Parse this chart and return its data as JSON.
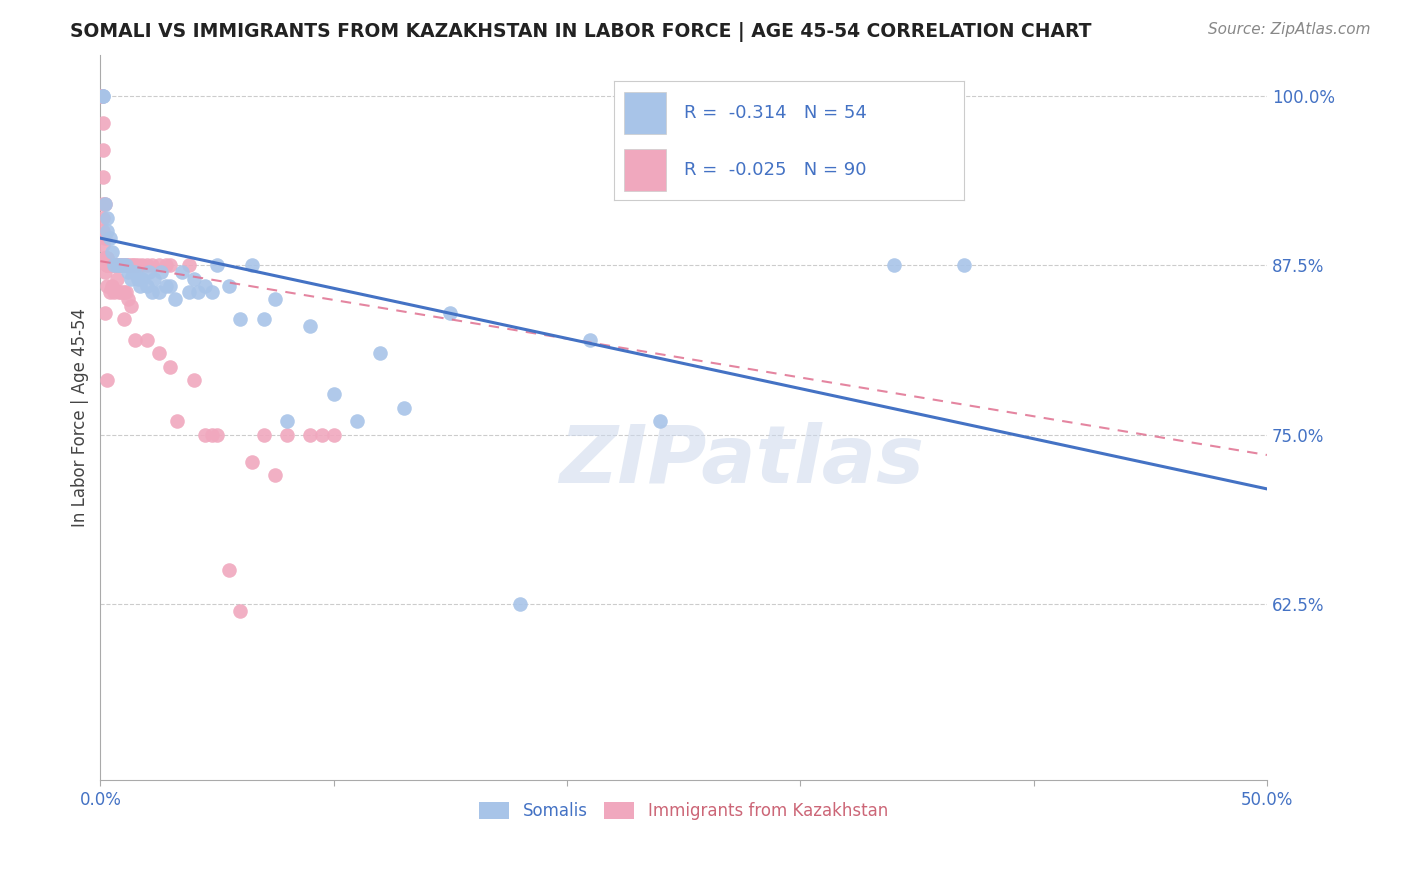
{
  "title": "SOMALI VS IMMIGRANTS FROM KAZAKHSTAN IN LABOR FORCE | AGE 45-54 CORRELATION CHART",
  "source": "Source: ZipAtlas.com",
  "ylabel": "In Labor Force | Age 45-54",
  "xlim": [
    0.0,
    0.5
  ],
  "ylim": [
    0.495,
    1.03
  ],
  "xtick_positions": [
    0.0,
    0.1,
    0.2,
    0.3,
    0.4,
    0.5
  ],
  "xticklabels": [
    "0.0%",
    "",
    "",
    "",
    "",
    "50.0%"
  ],
  "yticks_right": [
    0.625,
    0.75,
    0.875,
    1.0
  ],
  "ytick_right_labels": [
    "62.5%",
    "75.0%",
    "87.5%",
    "100.0%"
  ],
  "blue_R": -0.314,
  "blue_N": 54,
  "pink_R": -0.025,
  "pink_N": 90,
  "blue_color": "#a8c4e8",
  "pink_color": "#f0a8be",
  "blue_line_color": "#4472c4",
  "pink_line_color": "#e07090",
  "legend_blue_label": "Somalis",
  "legend_pink_label": "Immigrants from Kazakhstan",
  "watermark": "ZIPatlas",
  "blue_line_x0": 0.0,
  "blue_line_y0": 0.895,
  "blue_line_x1": 0.5,
  "blue_line_y1": 0.71,
  "pink_line_x0": 0.0,
  "pink_line_y0": 0.878,
  "pink_line_x1": 0.5,
  "pink_line_y1": 0.735,
  "blue_x": [
    0.001,
    0.001,
    0.002,
    0.003,
    0.003,
    0.004,
    0.005,
    0.006,
    0.007,
    0.008,
    0.009,
    0.01,
    0.011,
    0.012,
    0.013,
    0.014,
    0.015,
    0.016,
    0.017,
    0.018,
    0.02,
    0.021,
    0.022,
    0.023,
    0.025,
    0.026,
    0.028,
    0.03,
    0.032,
    0.035,
    0.038,
    0.04,
    0.042,
    0.045,
    0.048,
    0.05,
    0.055,
    0.06,
    0.065,
    0.07,
    0.075,
    0.08,
    0.09,
    0.1,
    0.11,
    0.12,
    0.13,
    0.15,
    0.18,
    0.21,
    0.24,
    0.31,
    0.34,
    0.37
  ],
  "blue_y": [
    1.0,
    1.0,
    0.92,
    0.91,
    0.9,
    0.895,
    0.885,
    0.875,
    0.875,
    0.875,
    0.875,
    0.875,
    0.875,
    0.87,
    0.865,
    0.87,
    0.87,
    0.865,
    0.86,
    0.865,
    0.86,
    0.87,
    0.855,
    0.865,
    0.855,
    0.87,
    0.86,
    0.86,
    0.85,
    0.87,
    0.855,
    0.865,
    0.855,
    0.86,
    0.855,
    0.875,
    0.86,
    0.835,
    0.875,
    0.835,
    0.85,
    0.76,
    0.83,
    0.78,
    0.76,
    0.81,
    0.77,
    0.84,
    0.625,
    0.82,
    0.76,
    1.0,
    0.875,
    0.875
  ],
  "pink_x": [
    0.0005,
    0.0005,
    0.0005,
    0.001,
    0.001,
    0.001,
    0.001,
    0.001,
    0.001,
    0.001,
    0.002,
    0.002,
    0.002,
    0.002,
    0.002,
    0.003,
    0.003,
    0.003,
    0.003,
    0.003,
    0.003,
    0.004,
    0.004,
    0.004,
    0.004,
    0.004,
    0.005,
    0.005,
    0.005,
    0.005,
    0.006,
    0.006,
    0.006,
    0.007,
    0.007,
    0.007,
    0.008,
    0.008,
    0.008,
    0.009,
    0.009,
    0.01,
    0.01,
    0.011,
    0.011,
    0.012,
    0.013,
    0.014,
    0.015,
    0.016,
    0.018,
    0.02,
    0.022,
    0.025,
    0.028,
    0.03,
    0.033,
    0.038,
    0.04,
    0.045,
    0.048,
    0.05,
    0.055,
    0.06,
    0.065,
    0.07,
    0.075,
    0.08,
    0.09,
    0.095,
    0.1,
    0.01,
    0.015,
    0.02,
    0.025,
    0.03,
    0.01,
    0.008,
    0.012,
    0.005,
    0.003,
    0.004,
    0.006,
    0.002,
    0.007,
    0.009,
    0.011,
    0.013,
    0.003,
    0.002
  ],
  "pink_y": [
    1.0,
    1.0,
    1.0,
    0.98,
    0.96,
    0.94,
    0.92,
    0.91,
    0.9,
    0.89,
    0.92,
    0.895,
    0.88,
    0.88,
    0.88,
    0.88,
    0.875,
    0.88,
    0.875,
    0.875,
    0.875,
    0.875,
    0.875,
    0.875,
    0.875,
    0.875,
    0.875,
    0.875,
    0.875,
    0.875,
    0.875,
    0.875,
    0.875,
    0.875,
    0.875,
    0.875,
    0.875,
    0.875,
    0.875,
    0.875,
    0.875,
    0.875,
    0.875,
    0.875,
    0.875,
    0.875,
    0.875,
    0.875,
    0.875,
    0.875,
    0.875,
    0.875,
    0.875,
    0.875,
    0.875,
    0.875,
    0.76,
    0.875,
    0.79,
    0.75,
    0.75,
    0.75,
    0.65,
    0.62,
    0.73,
    0.75,
    0.72,
    0.75,
    0.75,
    0.75,
    0.75,
    0.835,
    0.82,
    0.82,
    0.81,
    0.8,
    0.855,
    0.855,
    0.85,
    0.86,
    0.86,
    0.855,
    0.855,
    0.87,
    0.865,
    0.855,
    0.855,
    0.845,
    0.79,
    0.84
  ]
}
